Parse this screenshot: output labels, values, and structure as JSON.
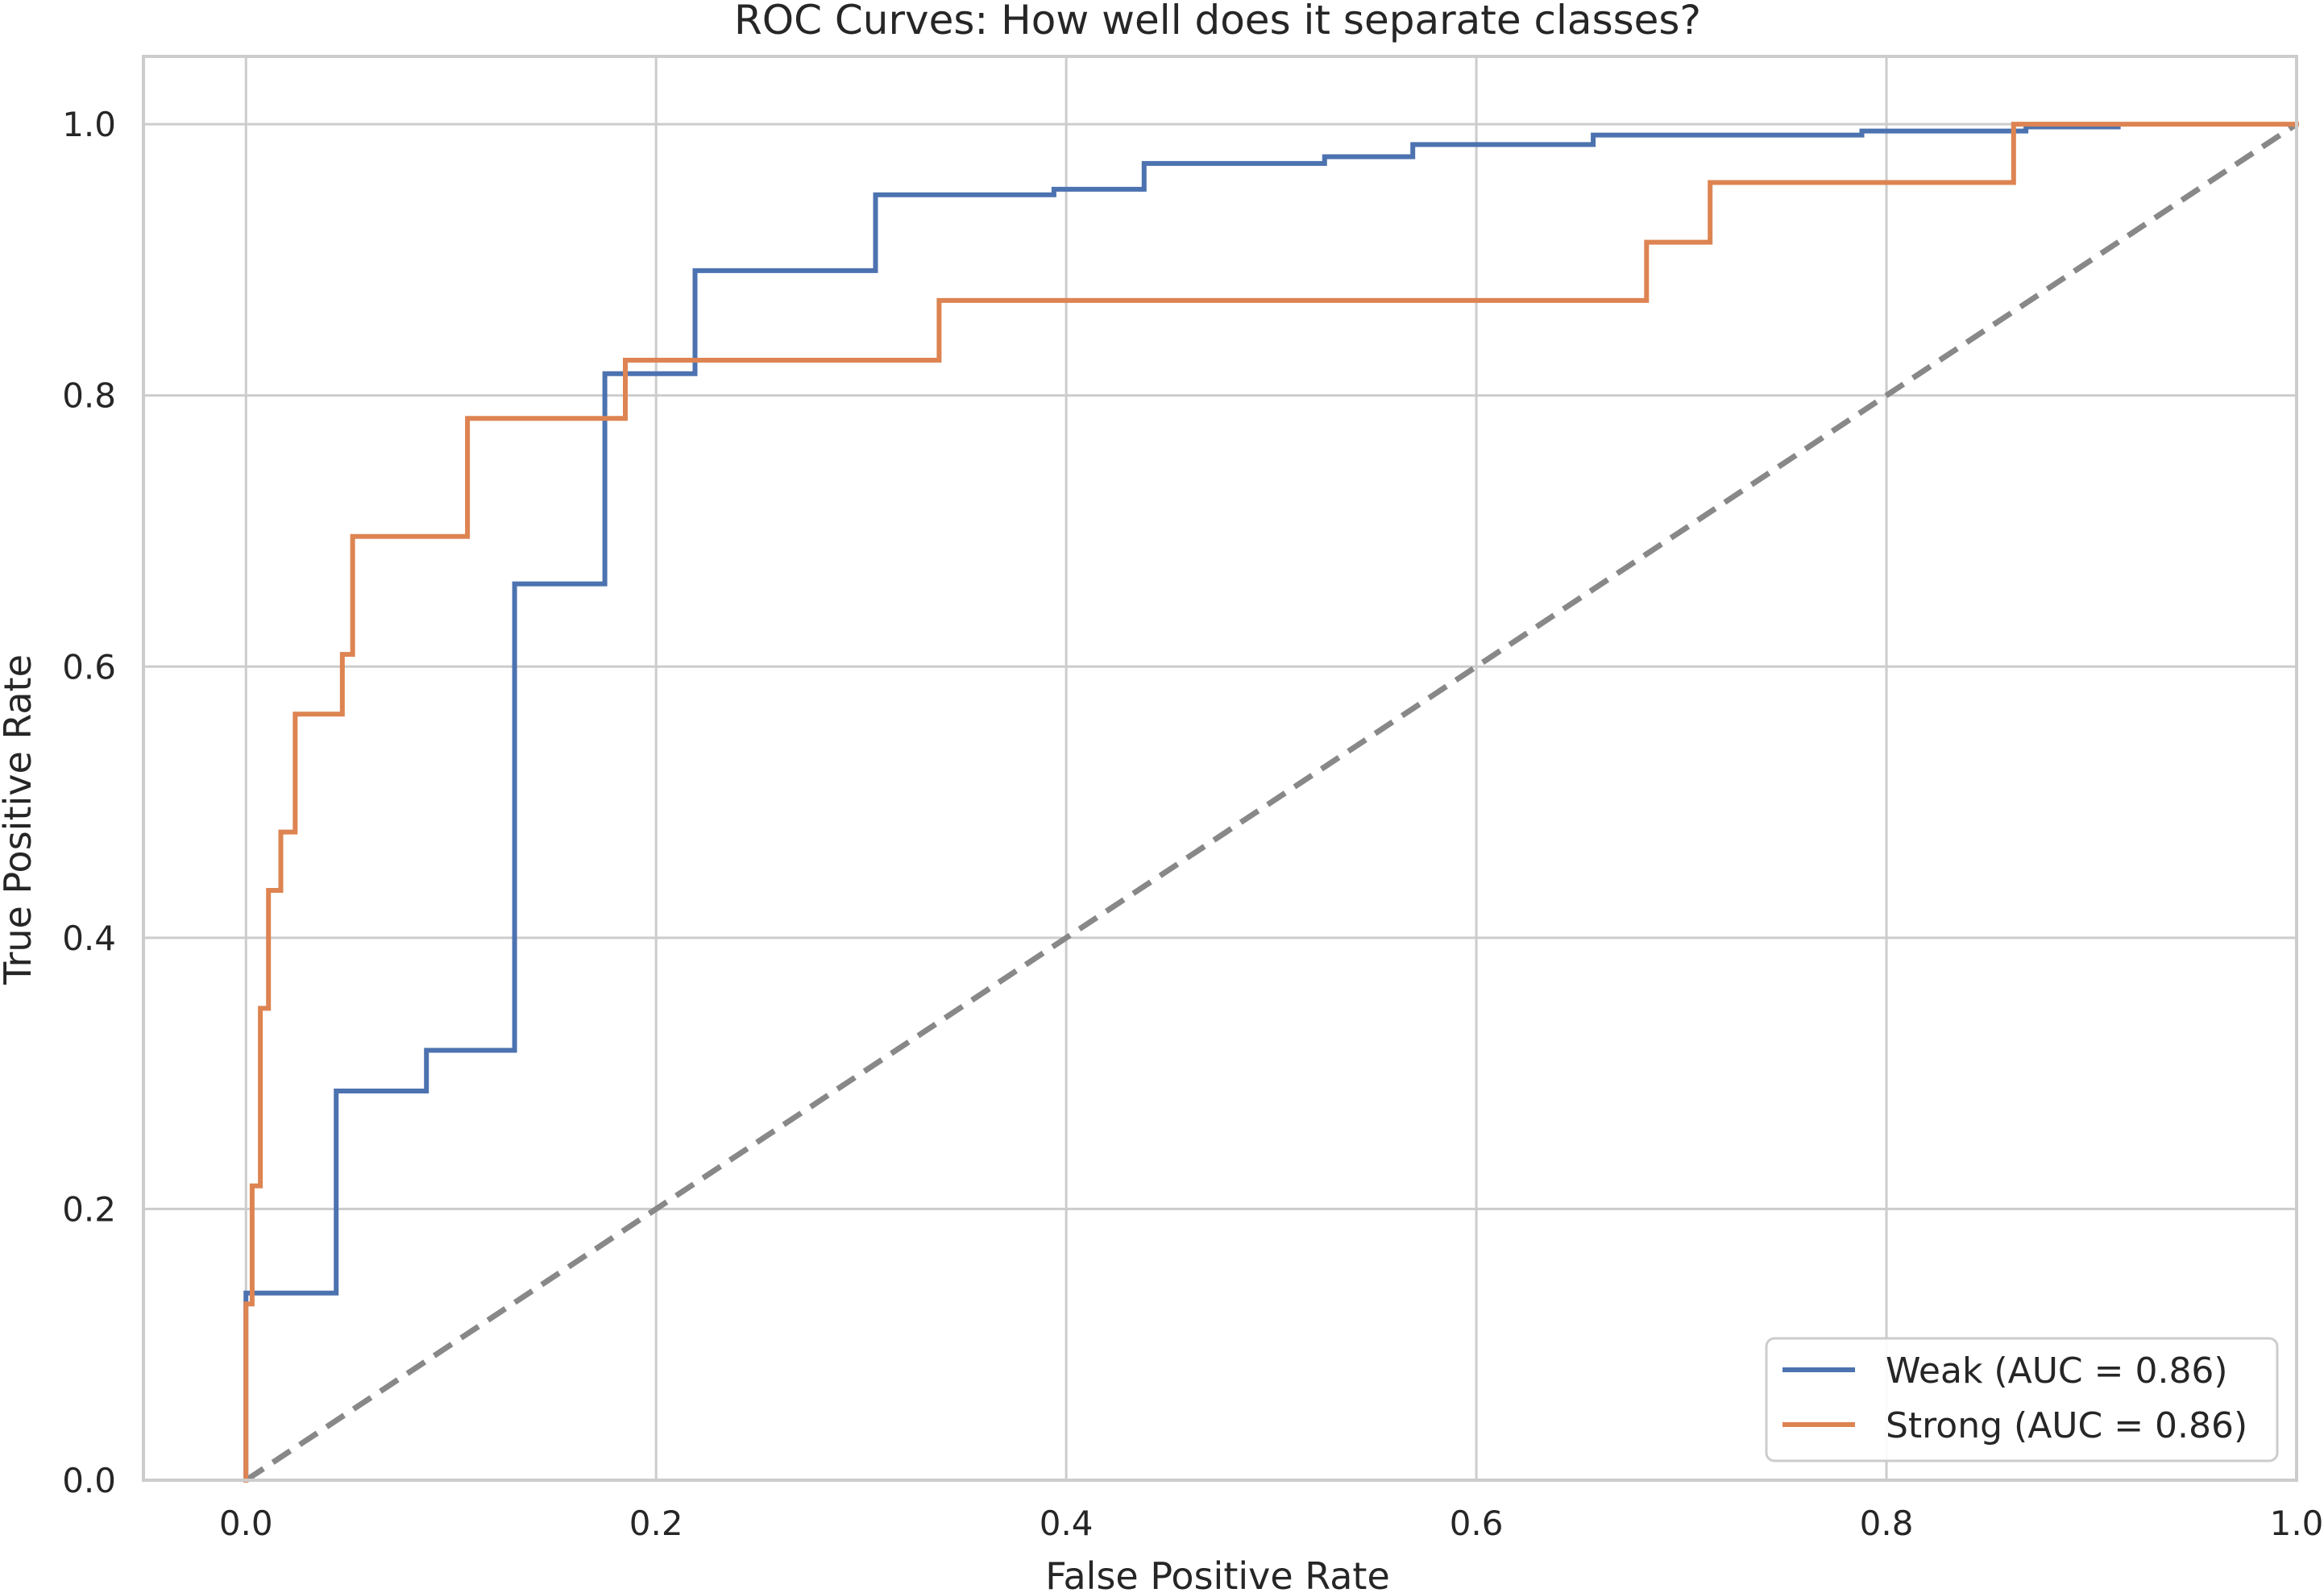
{
  "chart_data": {
    "type": "line",
    "title": "ROC Curves: How well does it separate classes?",
    "xlabel": "False Positive Rate",
    "ylabel": "True Positive Rate",
    "xlim": [
      -0.05,
      1.0
    ],
    "ylim": [
      0.0,
      1.05
    ],
    "xticks": [
      "0.0",
      "0.2",
      "0.4",
      "0.6",
      "0.8",
      "1.0"
    ],
    "yticks": [
      "0.0",
      "0.2",
      "0.4",
      "0.6",
      "0.8",
      "1.0"
    ],
    "grid": true,
    "legend_position": "bottom-right",
    "series": [
      {
        "name": "Weak (AUC = 0.86)",
        "color": "#4c72b0",
        "x": [
          0.0,
          0.0,
          0.0,
          0.044,
          0.044,
          0.088,
          0.088,
          0.131,
          0.131,
          0.175,
          0.175,
          0.219,
          0.219,
          0.307,
          0.307,
          0.394,
          0.394,
          0.438,
          0.438,
          0.526,
          0.526,
          0.569,
          0.569,
          0.657,
          0.657,
          0.788,
          0.788,
          0.868,
          0.868,
          0.913
        ],
        "y": [
          0.0,
          0.09,
          0.138,
          0.138,
          0.287,
          0.287,
          0.317,
          0.317,
          0.661,
          0.661,
          0.816,
          0.816,
          0.892,
          0.892,
          0.948,
          0.948,
          0.952,
          0.952,
          0.971,
          0.971,
          0.976,
          0.976,
          0.985,
          0.985,
          0.992,
          0.992,
          0.995,
          0.995,
          0.998,
          0.998
        ]
      },
      {
        "name": "Strong (AUC = 0.86)",
        "color": "#dd8452",
        "x": [
          0.0,
          0.0,
          0.0,
          0.003,
          0.003,
          0.007,
          0.007,
          0.011,
          0.011,
          0.017,
          0.017,
          0.024,
          0.024,
          0.028,
          0.028,
          0.047,
          0.047,
          0.052,
          0.052,
          0.108,
          0.108,
          0.185,
          0.185,
          0.338,
          0.338,
          0.683,
          0.683,
          0.714,
          0.714,
          0.862,
          0.862,
          1.0
        ],
        "y": [
          0.0,
          0.087,
          0.13,
          0.13,
          0.217,
          0.217,
          0.348,
          0.348,
          0.435,
          0.435,
          0.478,
          0.478,
          0.565,
          0.565,
          0.565,
          0.565,
          0.609,
          0.609,
          0.696,
          0.696,
          0.783,
          0.783,
          0.826,
          0.826,
          0.87,
          0.87,
          0.913,
          0.913,
          0.957,
          0.957,
          1.0,
          1.0
        ]
      }
    ],
    "reference_line": {
      "color": "#888888",
      "x": [
        0.0,
        1.0
      ],
      "y": [
        0.0,
        1.0
      ]
    }
  }
}
